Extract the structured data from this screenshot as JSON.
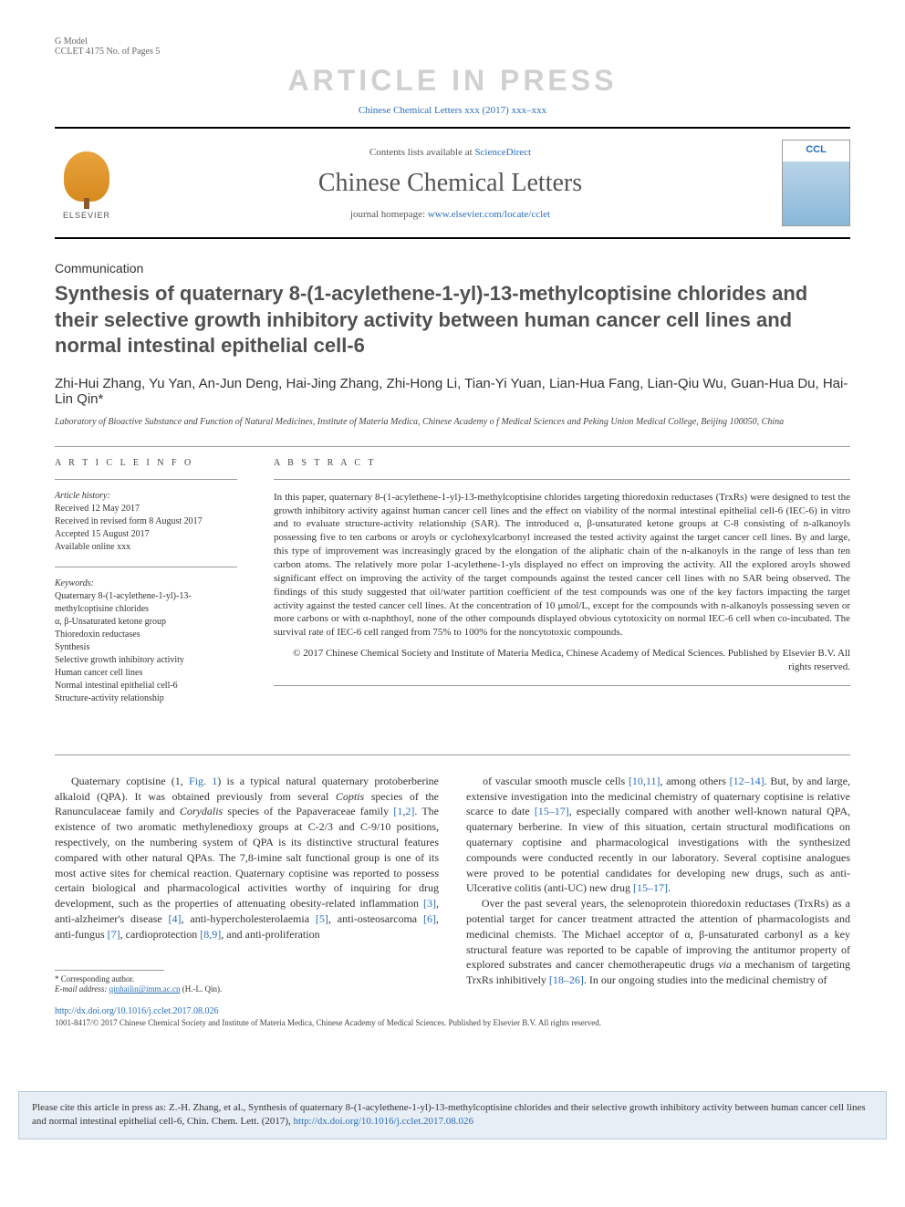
{
  "gmodel": {
    "line1": "G Model",
    "line2": "CCLET 4175 No. of Pages 5"
  },
  "watermark": "ARTICLE IN PRESS",
  "citation_top": "Chinese Chemical Letters xxx (2017) xxx–xxx",
  "header": {
    "contents_prefix": "Contents lists available at ",
    "contents_link": "ScienceDirect",
    "journal_name": "Chinese Chemical Letters",
    "homepage_prefix": "journal homepage: ",
    "homepage_link": "www.elsevier.com/locate/cclet",
    "elsevier_label": "ELSEVIER"
  },
  "article": {
    "type": "Communication",
    "title": "Synthesis of quaternary 8-(1-acylethene-1-yl)-13-methylcoptisine chlorides and their selective growth inhibitory activity between human cancer cell lines and normal intestinal epithelial cell-6",
    "authors": "Zhi-Hui Zhang, Yu Yan, An-Jun Deng, Hai-Jing Zhang, Zhi-Hong Li, Tian-Yi Yuan, Lian-Hua Fang, Lian-Qiu Wu, Guan-Hua Du, Hai-Lin Qin*",
    "affiliation": "Laboratory of Bioactive Substance and Function of Natural Medicines, Institute of Materia Medica, Chinese Academy o f Medical Sciences and Peking Union Medical College, Beijing 100050, China"
  },
  "info": {
    "heading": "A R T I C L E   I N F O",
    "history_label": "Article history:",
    "history": [
      "Received 12 May 2017",
      "Received in revised form 8 August 2017",
      "Accepted 15 August 2017",
      "Available online xxx"
    ],
    "keywords_label": "Keywords:",
    "keywords": [
      "Quaternary 8-(1-acylethene-1-yl)-13-methylcoptisine chlorides",
      "α, β-Unsaturated ketone group",
      "Thioredoxin reductases",
      "Synthesis",
      "Selective growth inhibitory activity",
      "Human cancer cell lines",
      "Normal intestinal epithelial cell-6",
      "Structure-activity relationship"
    ]
  },
  "abstract": {
    "heading": "A B S T R A C T",
    "text": "In this paper, quaternary 8-(1-acylethene-1-yl)-13-methylcoptisine chlorides targeting thioredoxin reductases (TrxRs) were designed to test the growth inhibitory activity against human cancer cell lines and the effect on viability of the normal intestinal epithelial cell-6 (IEC-6) in vitro and to evaluate structure-activity relationship (SAR). The introduced α, β-unsaturated ketone groups at C-8 consisting of n-alkanoyls possessing five to ten carbons or aroyls or cyclohexylcarbonyl increased the tested activity against the target cancer cell lines. By and large, this type of improvement was increasingly graced by the elongation of the aliphatic chain of the n-alkanoyls in the range of less than ten carbon atoms. The relatively more polar 1-acylethene-1-yls displayed no effect on improving the activity. All the explored aroyls showed significant effect on improving the activity of the target compounds against the tested cancer cell lines with no SAR being observed. The findings of this study suggested that oil/water partition coefficient of the test compounds was one of the key factors impacting the target activity against the tested cancer cell lines. At the concentration of 10 μmol/L, except for the compounds with n-alkanoyls possessing seven or more carbons or with α-naphthoyl, none of the other compounds displayed obvious cytotoxicity on normal IEC-6 cell when co-incubated. The survival rate of IEC-6 cell ranged from 75% to 100% for the noncytotoxic compounds.",
    "copyright": "© 2017 Chinese Chemical Society and Institute of Materia Medica, Chinese Academy of Medical Sciences. Published by Elsevier B.V. All rights reserved."
  },
  "body": {
    "col1_html": "Quaternary coptisine (1, <span class='ref'>Fig. 1</span>) is a typical natural quaternary protoberberine alkaloid (QPA). It was obtained previously from several <em>Coptis</em> species of the Ranunculaceae family and <em>Corydalis</em> species of the Papaveraceae family <span class='ref'>[1,2]</span>. The existence of two aromatic methylenedioxy groups at C-2/3 and C-9/10 positions, respectively, on the numbering system of QPA is its distinctive structural features compared with other natural QPAs. The 7,8-imine salt functional group is one of its most active sites for chemical reaction. Quaternary coptisine was reported to possess certain biological and pharmacological activities worthy of inquiring for drug development, such as the properties of attenuating obesity-related inflammation <span class='ref'>[3]</span>, anti-alzheimer's disease <span class='ref'>[4]</span>, anti-hypercholesterolaemia <span class='ref'>[5]</span>, anti-osteosarcoma <span class='ref'>[6]</span>, anti-fungus <span class='ref'>[7]</span>, cardioprotection <span class='ref'>[8,9]</span>, and anti-proliferation",
    "col2_html": "of vascular smooth muscle cells <span class='ref'>[10,11]</span>, among others <span class='ref'>[12–14]</span>. But, by and large, extensive investigation into the medicinal chemistry of quaternary coptisine is relative scarce to date <span class='ref'>[15–17]</span>, especially compared with another well-known natural QPA, quaternary berberine. In view of this situation, certain structural modifications on quaternary coptisine and pharmacological investigations with the synthesized compounds were conducted recently in our laboratory. Several coptisine analogues were proved to be potential candidates for developing new drugs, such as anti-Ulcerative colitis (anti-UC) new drug <span class='ref'>[15–17]</span>.<br>&nbsp;&nbsp;&nbsp;&nbsp;Over the past several years, the selenoprotein thioredoxin reductases (TrxRs) as a potential target for cancer treatment attracted the attention of pharmacologists and medicinal chemists. The Michael acceptor of α, β-unsaturated carbonyl as a key structural feature was reported to be capable of improving the antitumor property of explored substrates and cancer chemotherapeutic drugs <em>via</em> a mechanism of targeting TrxRs inhibitively <span class='ref'>[18–26]</span>. In our ongoing studies into the medicinal chemistry of"
  },
  "footnote": {
    "corresp": "* Corresponding author.",
    "email_label": "E-mail address:",
    "email": "qinhailin@imm.ac.cn",
    "email_name": "(H.-L. Qin)."
  },
  "doi": {
    "url": "http://dx.doi.org/10.1016/j.cclet.2017.08.026",
    "issn_copyright": "1001-8417/© 2017 Chinese Chemical Society and Institute of Materia Medica, Chinese Academy of Medical Sciences. Published by Elsevier B.V. All rights reserved."
  },
  "cite_box": {
    "prefix": "Please cite this article in press as: Z.-H. Zhang, et al., Synthesis of quaternary 8-(1-acylethene-1-yl)-13-methylcoptisine chlorides and their selective growth inhibitory activity between human cancer cell lines and normal intestinal epithelial cell-6, Chin. Chem. Lett. (2017), ",
    "link": "http://dx.doi.org/10.1016/j.cclet.2017.08.026"
  }
}
